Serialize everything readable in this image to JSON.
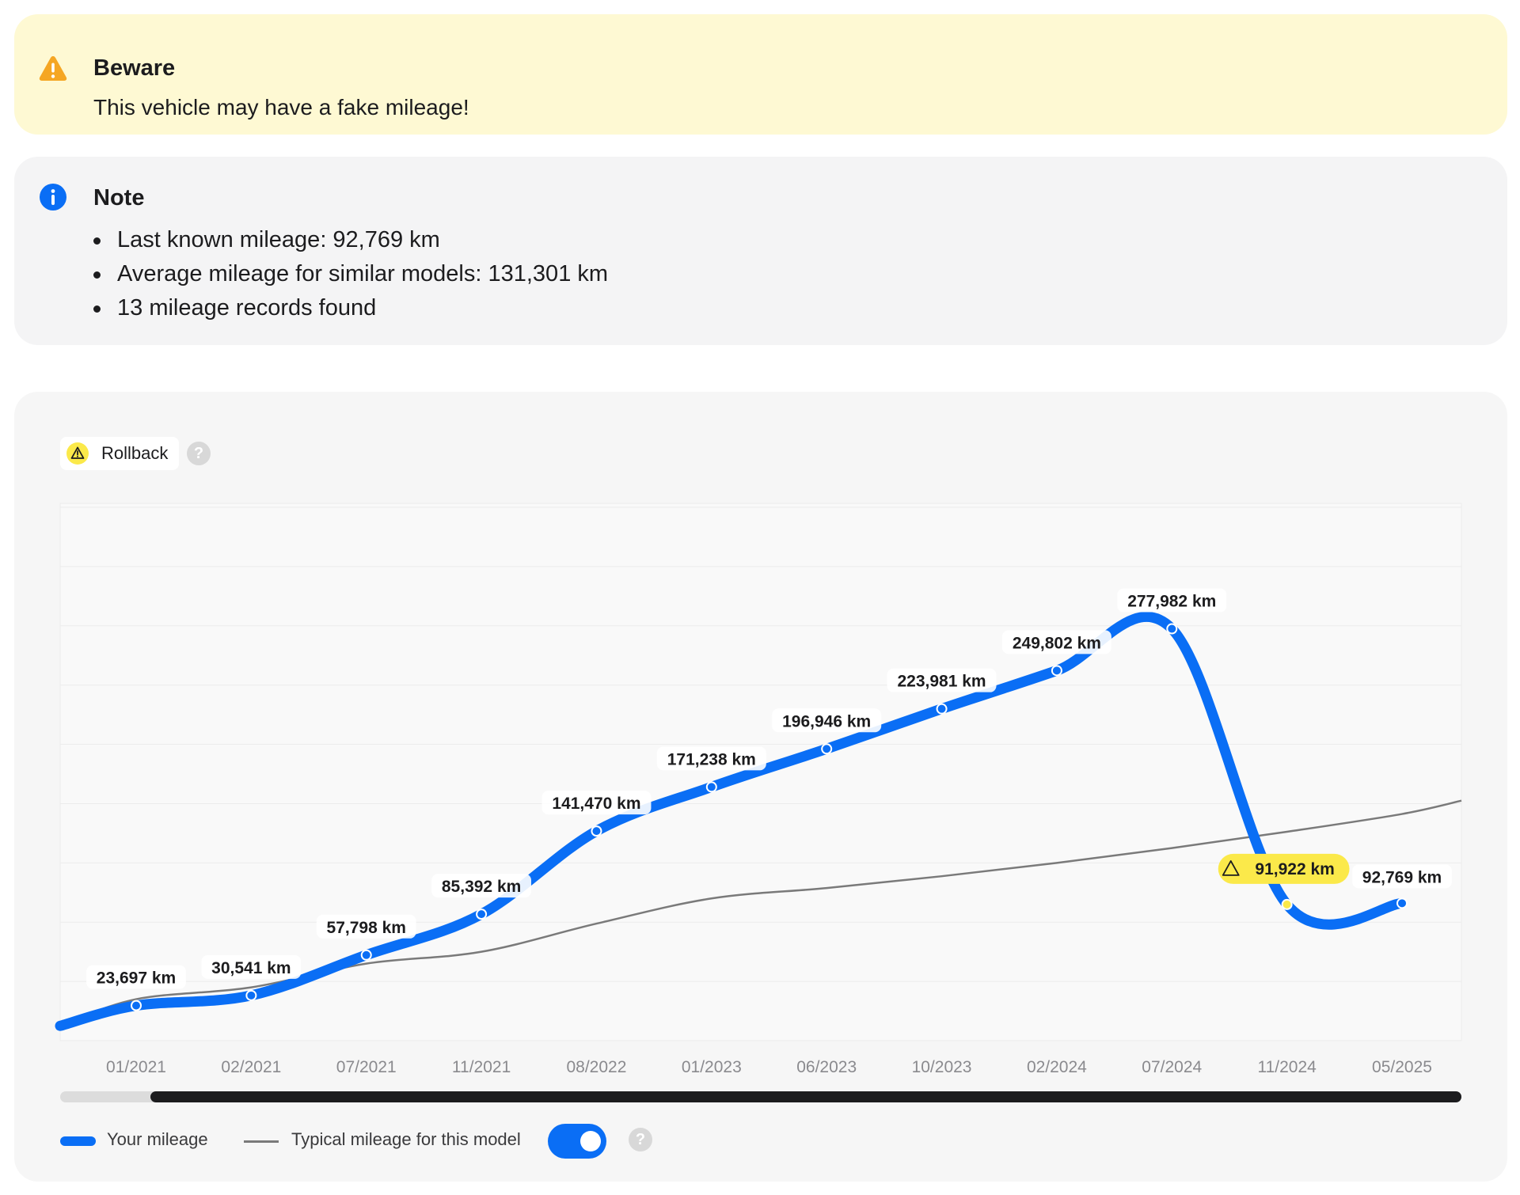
{
  "warning": {
    "icon": "warning-triangle-icon",
    "title": "Beware",
    "message": "This vehicle may have a fake mileage!",
    "color": "#f5a623"
  },
  "note": {
    "icon": "info-icon",
    "title": "Note",
    "items": [
      "Last known mileage: 92,769 km",
      "Average mileage for similar models: 131,301 km",
      "13 mileage records found"
    ],
    "color": "#0a6ef5"
  },
  "chart": {
    "chip_label": "Rollback",
    "chip_icon": "warning-triangle-icon",
    "help_label": "?",
    "legend": {
      "your_mileage": "Your mileage",
      "typical_mileage": "Typical mileage for this model"
    },
    "toggle_on": true,
    "scroll_state": "partially scrolled"
  },
  "chart_data": {
    "type": "line",
    "categories": [
      "01/2021",
      "02/2021",
      "07/2021",
      "11/2021",
      "08/2022",
      "01/2023",
      "06/2023",
      "10/2023",
      "02/2024",
      "07/2024",
      "11/2024",
      "05/2025"
    ],
    "series": [
      {
        "name": "Your mileage",
        "color": "#0a6ef5",
        "values": [
          23697,
          30541,
          57798,
          85392,
          141470,
          171238,
          196946,
          223981,
          249802,
          277982,
          91922,
          92769
        ],
        "labels": [
          "23,697 km",
          "30,541 km",
          "57,798 km",
          "85,392 km",
          "141,470 km",
          "171,238 km",
          "196,946 km",
          "223,981 km",
          "249,802 km",
          "277,982 km",
          "91,922 km",
          "92,769 km"
        ]
      },
      {
        "name": "Typical mileage for this model",
        "color": "#7a7a7a",
        "values": [
          28000,
          36000,
          52000,
          60000,
          79000,
          96000,
          103000,
          111000,
          120000,
          130000,
          141000,
          153000
        ]
      }
    ],
    "rollback_index": 10,
    "rollback_color": "#fbe94a",
    "ylim": [
      0,
      360000
    ],
    "grid": true
  }
}
